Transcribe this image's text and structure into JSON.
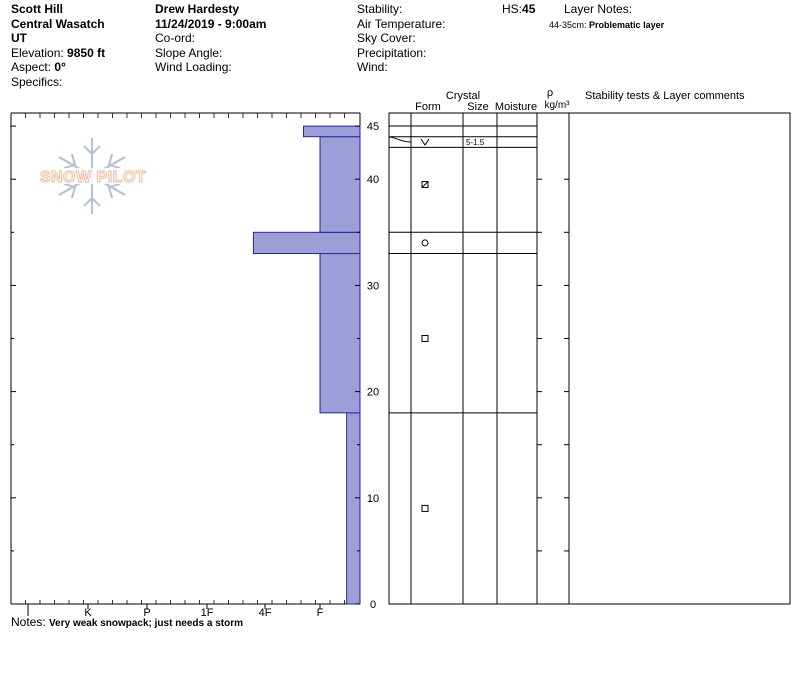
{
  "header": {
    "location": "Scott Hill",
    "range": "Central Wasatch",
    "state": "UT",
    "elevation_label": "Elevation:",
    "elevation_value": "9850 ft",
    "aspect_label": "Aspect:",
    "aspect_value": "0°",
    "specifics_label": "Specifics:",
    "observer": "Drew Hardesty",
    "datetime": "11/24/2019 - 9:00am",
    "coord_label": "Co-ord:",
    "slope_label": "Slope Angle:",
    "wind_loading_label": "Wind Loading:",
    "stability_label": "Stability:",
    "air_temp_label": "Air Temperature:",
    "sky_label": "Sky Cover:",
    "precip_label": "Precipitation:",
    "wind_label": "Wind:",
    "hs_label": "HS:",
    "hs_value": "45",
    "layer_notes_label": "Layer Notes:",
    "layer_note_range": "44-35cm:",
    "layer_note_text": "Problematic layer"
  },
  "logo_text": "SNOW PILOT",
  "columns": {
    "crystal": "Crystal",
    "form": "Form",
    "size": "Size",
    "moisture": "Moisture",
    "rho": "ρ",
    "density_unit": "kg/m³",
    "comments": "Stability tests & Layer comments"
  },
  "notes_label": "Notes:",
  "notes_text": "Very weak snowpack; just needs a storm",
  "colors": {
    "fill": "#9d9dd8",
    "stroke": "#2525a0",
    "logo": "#f0c4a8",
    "flake": "#b8c4d6"
  },
  "chart_data": {
    "type": "bar",
    "orientation": "horizontal",
    "x_categories": [
      "I",
      "K",
      "P",
      "1F",
      "4F",
      "F"
    ],
    "y_ticks": [
      0,
      10,
      20,
      30,
      40,
      45
    ],
    "ylim": [
      0,
      45
    ],
    "layers": [
      {
        "bottom": 0,
        "top": 18,
        "hardness_index": 6.6
      },
      {
        "bottom": 18,
        "top": 33,
        "hardness_index": 6.0
      },
      {
        "bottom": 33,
        "top": 35,
        "hardness_index": 4.8
      },
      {
        "bottom": 35,
        "top": 44,
        "hardness_index": 6.0
      },
      {
        "bottom": 44,
        "top": 45,
        "hardness_index": 5.7
      }
    ],
    "grain_layers": [
      {
        "bottom": 44,
        "top": 45,
        "form": "",
        "size": ""
      },
      {
        "bottom": 43,
        "top": 44,
        "form": "V",
        "size": "5-1.5"
      },
      {
        "bottom": 35,
        "top": 43,
        "form": "faceted-rounded",
        "size": ""
      },
      {
        "bottom": 33,
        "top": 35,
        "form": "round",
        "size": ""
      },
      {
        "bottom": 18,
        "top": 33,
        "form": "faceted",
        "size": ""
      },
      {
        "bottom": 0,
        "top": 18,
        "form": "faceted",
        "size": ""
      }
    ]
  }
}
